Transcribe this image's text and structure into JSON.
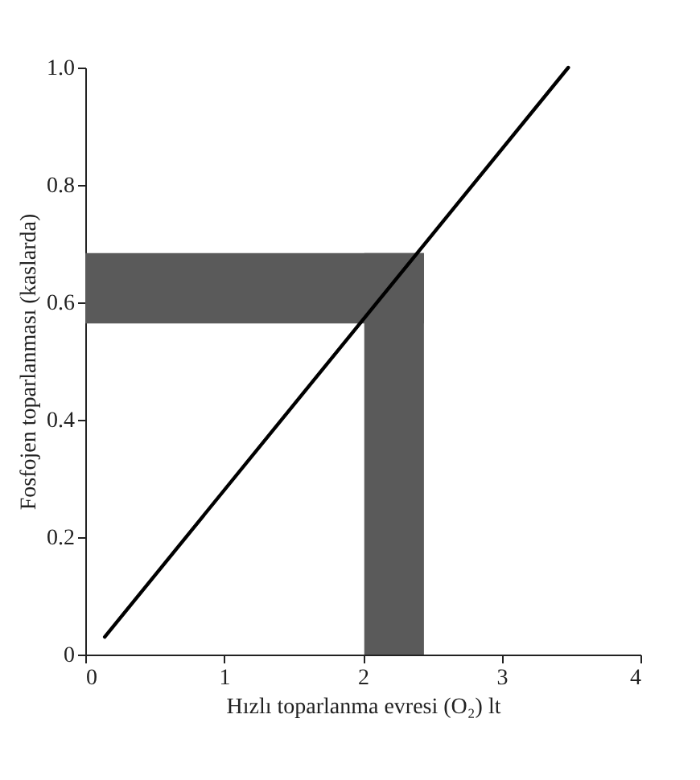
{
  "chart_data": {
    "type": "line",
    "xlabel": "Hızlı toparlanma evresi (O₂) lt",
    "ylabel": "Fosfojen toparlanması (kaslarda)",
    "x": [
      0.14,
      3.48
    ],
    "series": [
      {
        "color": "#000000",
        "values": [
          0.03,
          1.0
        ]
      }
    ],
    "bands": [
      {
        "axis": "y",
        "from": 0.564,
        "to": 0.684,
        "color": "#5a5a5a"
      },
      {
        "axis": "x",
        "from": 2.01,
        "to": 2.44,
        "color": "#5a5a5a"
      }
    ],
    "xlim": [
      0,
      4
    ],
    "xticks": [
      0,
      1,
      2,
      3,
      4
    ],
    "ylim": [
      0,
      1.0
    ],
    "yticks": [
      0,
      0.2,
      0.4,
      0.6,
      0.8,
      {
        "value": 1.0,
        "label": "1.0"
      }
    ],
    "grid": false,
    "marker": "none",
    "line_style": "solid"
  }
}
